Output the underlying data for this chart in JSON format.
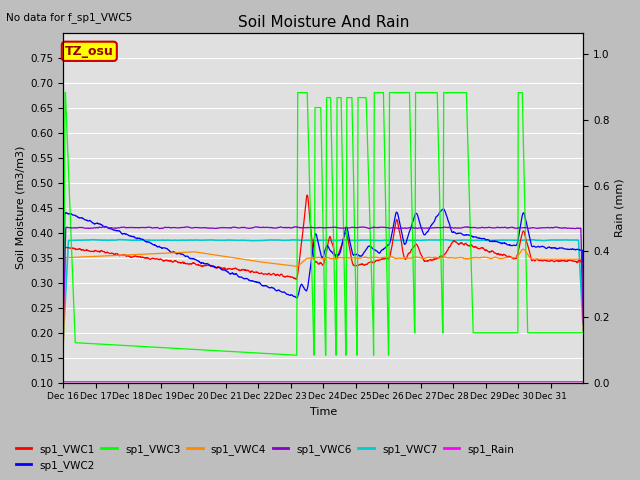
{
  "title": "Soil Moisture And Rain",
  "subtitle": "No data for f_sp1_VWC5",
  "xlabel": "Time",
  "ylabel_left": "Soil Moisture (m3/m3)",
  "ylabel_right": "Rain (mm)",
  "ylim_left": [
    0.1,
    0.8
  ],
  "ylim_right": [
    0.0,
    1.0667
  ],
  "yticks_left": [
    0.1,
    0.15,
    0.2,
    0.25,
    0.3,
    0.35,
    0.4,
    0.45,
    0.5,
    0.55,
    0.6,
    0.65,
    0.7,
    0.75
  ],
  "yticks_right": [
    0.0,
    0.2,
    0.4,
    0.6,
    0.8,
    1.0
  ],
  "xtick_labels": [
    "Dec 16",
    "Dec 17",
    "Dec 18",
    "Dec 19",
    "Dec 20",
    "Dec 21",
    "Dec 22",
    "Dec 23",
    "Dec 24",
    "Dec 25",
    "Dec 26",
    "Dec 27",
    "Dec 28",
    "Dec 29",
    "Dec 30",
    "Dec 31"
  ],
  "annotation_box": "TZ_osu",
  "annotation_box_color": "#ffff00",
  "annotation_box_border": "#cc0000",
  "colors": {
    "sp1_VWC1": "#ff0000",
    "sp1_VWC2": "#0000ff",
    "sp1_VWC3": "#00ff00",
    "sp1_VWC4": "#ff8800",
    "sp1_VWC6": "#8800cc",
    "sp1_VWC7": "#00cccc",
    "sp1_Rain": "#ff00ff"
  },
  "background_color": "#e0e0e0",
  "fig_background": "#c8c8c8"
}
